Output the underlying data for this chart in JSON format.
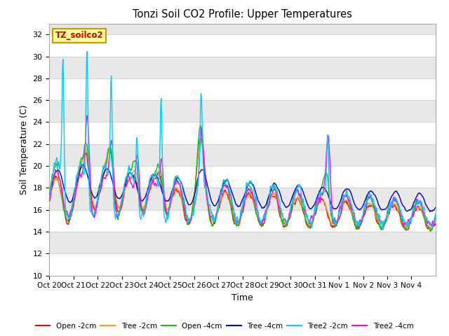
{
  "title": "Tonzi Soil CO2 Profile: Upper Temperatures",
  "xlabel": "Time",
  "ylabel": "Soil Temperature (C)",
  "ylim": [
    10,
    33
  ],
  "yticks": [
    10,
    12,
    14,
    16,
    18,
    20,
    22,
    24,
    26,
    28,
    30,
    32
  ],
  "series_colors": [
    "#ff0000",
    "#ff9900",
    "#00cc00",
    "#0000cc",
    "#00ccff",
    "#ff00ff"
  ],
  "series_labels": [
    "Open -2cm",
    "Tree -2cm",
    "Open -4cm",
    "Tree -4cm",
    "Tree2 -2cm",
    "Tree2 -4cm"
  ],
  "fig_bg": "#ffffff",
  "plot_bg_light": "#ffffff",
  "plot_bg_dark": "#e8e8e8",
  "watermark_text": "TZ_soilco2",
  "watermark_bg": "#ffff99",
  "watermark_border": "#cc9900",
  "watermark_text_color": "#cc0000",
  "x_tick_labels": [
    "Oct 20",
    "Oct 21",
    "Oct 22",
    "Oct 23",
    "Oct 24",
    "Oct 25",
    "Oct 26",
    "Oct 27",
    "Oct 28",
    "Oct 29",
    "Oct 30",
    "Oct 31",
    "Nov 1",
    "Nov 2",
    "Nov 3",
    "Nov 4"
  ],
  "line_width": 1.0
}
